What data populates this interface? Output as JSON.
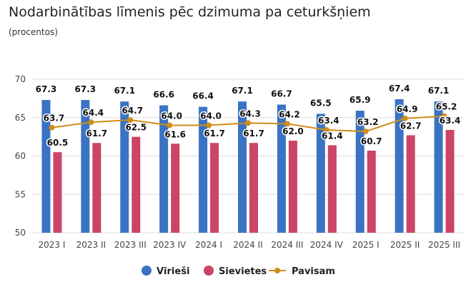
{
  "chart_data": {
    "type": "bar",
    "title": "Nodarbinātības līmenis pēc dzimuma pa ceturkšņiem",
    "subtitle": "(procentos)",
    "categories": [
      "2023 I",
      "2023 II",
      "2023 III",
      "2023 IV",
      "2024 I",
      "2024 II",
      "2024 III",
      "2024 IV",
      "2025 I",
      "2025 II",
      "2025 III"
    ],
    "series": [
      {
        "name": "Vīrieši",
        "type": "bar",
        "color": "#3a73c4",
        "values": [
          67.3,
          67.3,
          67.1,
          66.6,
          66.4,
          67.1,
          66.7,
          65.5,
          65.9,
          67.4,
          67.1
        ]
      },
      {
        "name": "Sievietes",
        "type": "bar",
        "color": "#cc4466",
        "values": [
          60.5,
          61.7,
          62.5,
          61.6,
          61.7,
          61.7,
          62.0,
          61.4,
          60.7,
          62.7,
          63.4
        ]
      },
      {
        "name": "Pavisam",
        "type": "line",
        "color": "#d08c1a",
        "values": [
          63.7,
          64.4,
          64.7,
          64.0,
          64.0,
          64.3,
          64.2,
          63.4,
          63.2,
          64.9,
          65.2
        ]
      }
    ],
    "ylim": [
      50,
      70
    ],
    "yticks": [
      50,
      55,
      60,
      65,
      70
    ],
    "grid": true,
    "legend": "bottom-center"
  }
}
